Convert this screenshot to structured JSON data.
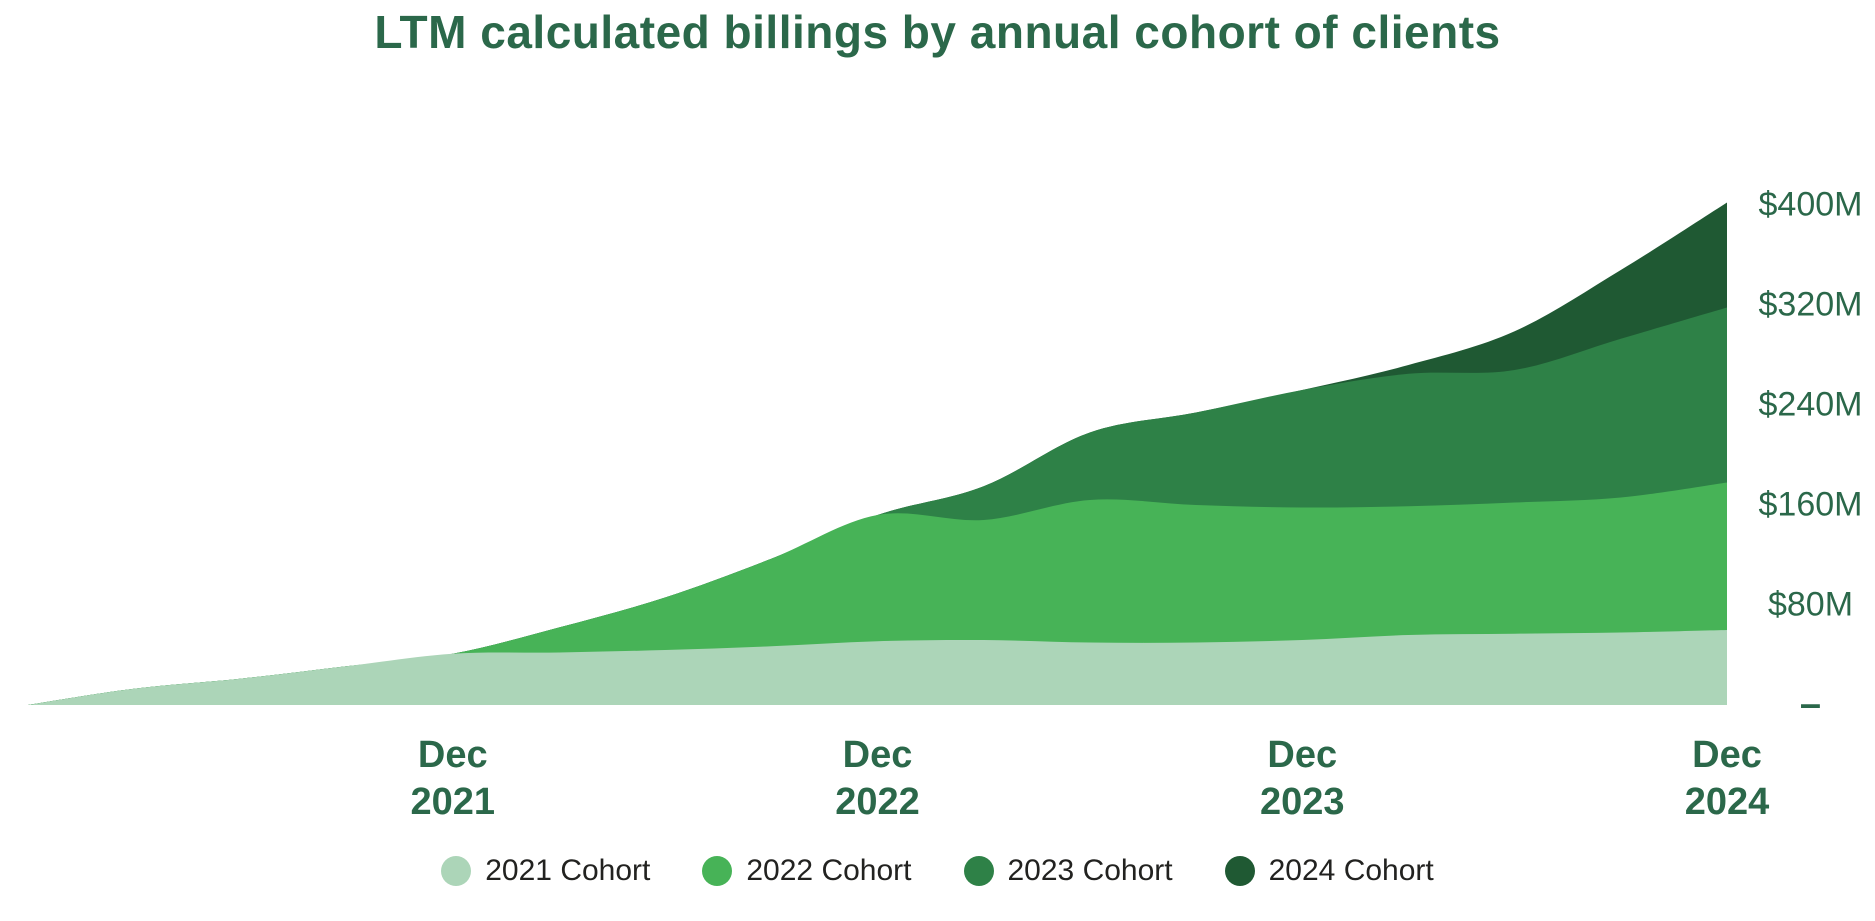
{
  "page": {
    "background": "#FFFFFF"
  },
  "title": {
    "text": "LTM calculated billings by annual cohort of clients",
    "color": "#2B684A"
  },
  "chart_data": {
    "type": "area",
    "stacked": true,
    "title": "LTM calculated billings by annual cohort of clients",
    "xlabel": "",
    "ylabel": "",
    "x_unit": "months since Dec 2020",
    "x": [
      0,
      3,
      6,
      9,
      12,
      15,
      18,
      21,
      24,
      27,
      30,
      33,
      36,
      39,
      42,
      45,
      48
    ],
    "x_ticks": [
      {
        "month": 12,
        "line1": "Dec",
        "line2": "2021"
      },
      {
        "month": 24,
        "line1": "Dec",
        "line2": "2022"
      },
      {
        "month": 36,
        "line1": "Dec",
        "line2": "2023"
      },
      {
        "month": 48,
        "line1": "Dec",
        "line2": "2024"
      }
    ],
    "y_ticks": [
      {
        "value": 400,
        "label": "$400M"
      },
      {
        "value": 320,
        "label": "$320M"
      },
      {
        "value": 240,
        "label": "$240M"
      },
      {
        "value": 160,
        "label": "$160M"
      },
      {
        "value": 80,
        "label": "$80M"
      },
      {
        "value": 0,
        "label": "–"
      }
    ],
    "ylim": [
      0,
      400
    ],
    "grid": false,
    "legend_position": "bottom",
    "axis_text_color": "#2B684A",
    "series": [
      {
        "name": "2021 Cohort",
        "color": "#ACD5B8",
        "values": [
          0,
          13,
          21,
          31,
          41,
          42,
          44,
          47,
          51,
          52,
          50,
          50,
          52,
          56,
          57,
          58,
          60
        ]
      },
      {
        "name": "2022 Cohort",
        "color": "#47B357",
        "values": [
          0,
          0,
          0,
          0,
          0,
          20,
          42,
          70,
          101,
          96,
          114,
          110,
          106,
          103,
          105,
          108,
          118
        ]
      },
      {
        "name": "2023 Cohort",
        "color": "#2E8147",
        "values": [
          0,
          0,
          0,
          0,
          0,
          0,
          0,
          0,
          0,
          27,
          54,
          74,
          94,
          106,
          106,
          127,
          140
        ]
      },
      {
        "name": "2024 Cohort",
        "color": "#1F5933",
        "values": [
          0,
          0,
          0,
          0,
          0,
          0,
          0,
          0,
          0,
          0,
          0,
          0,
          0,
          7,
          31,
          55,
          84
        ]
      }
    ]
  }
}
